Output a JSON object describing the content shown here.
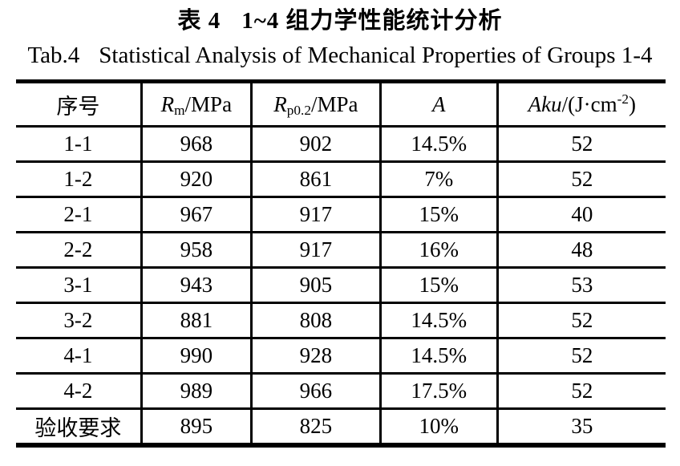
{
  "title": {
    "zh_label": "表 4",
    "zh_text": "1~4 组力学性能统计分析",
    "en_label": "Tab.4",
    "en_text": "Statistical Analysis of Mechanical Properties of Groups 1-4"
  },
  "table": {
    "columns": [
      {
        "name": "col-index",
        "width": "19.4%",
        "parts": [
          {
            "kind": "text",
            "t": "序号"
          }
        ]
      },
      {
        "name": "col-rm",
        "width": "16.8%",
        "parts": [
          {
            "kind": "italic",
            "t": "R"
          },
          {
            "kind": "sub",
            "t": "m"
          },
          {
            "kind": "text",
            "t": "/MPa"
          }
        ]
      },
      {
        "name": "col-rp02",
        "width": "19.8%",
        "parts": [
          {
            "kind": "italic",
            "t": "R"
          },
          {
            "kind": "sub",
            "t": "p0.2"
          },
          {
            "kind": "text",
            "t": "/MPa"
          }
        ]
      },
      {
        "name": "col-a",
        "width": "17.9%",
        "parts": [
          {
            "kind": "italic",
            "t": "A"
          }
        ]
      },
      {
        "name": "col-aku",
        "width": "26.1%",
        "parts": [
          {
            "kind": "italic",
            "t": "Aku"
          },
          {
            "kind": "text",
            "t": "/(J·cm"
          },
          {
            "kind": "sup",
            "t": "-2"
          },
          {
            "kind": "text",
            "t": ")"
          }
        ]
      }
    ],
    "rows": [
      [
        "1-1",
        "968",
        "902",
        "14.5%",
        "52"
      ],
      [
        "1-2",
        "920",
        "861",
        "7%",
        "52"
      ],
      [
        "2-1",
        "967",
        "917",
        "15%",
        "40"
      ],
      [
        "2-2",
        "958",
        "917",
        "16%",
        "48"
      ],
      [
        "3-1",
        "943",
        "905",
        "15%",
        "53"
      ],
      [
        "3-2",
        "881",
        "808",
        "14.5%",
        "52"
      ],
      [
        "4-1",
        "990",
        "928",
        "14.5%",
        "52"
      ],
      [
        "4-2",
        "989",
        "966",
        "17.5%",
        "52"
      ],
      [
        "验收要求",
        "895",
        "825",
        "10%",
        "35"
      ]
    ]
  }
}
